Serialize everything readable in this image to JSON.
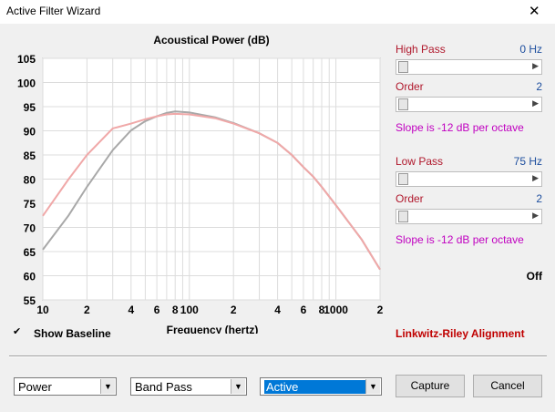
{
  "window": {
    "title": "Active Filter Wizard",
    "close": "✕"
  },
  "chart_data": {
    "type": "line",
    "title": "Acoustical Power (dB)",
    "x_label": "Frequency (hertz)",
    "log_x": true,
    "grid": true,
    "xlim": [
      10,
      2000
    ],
    "ylim": [
      55,
      105
    ],
    "xticks": [
      10,
      {
        "value": 20,
        "label": "2"
      },
      {
        "value": 40,
        "label": "4"
      },
      {
        "value": 60,
        "label": "6"
      },
      {
        "value": 80,
        "label": "8"
      },
      100,
      {
        "value": 200,
        "label": "2"
      },
      {
        "value": 400,
        "label": "4"
      },
      {
        "value": 600,
        "label": "6"
      },
      {
        "value": 800,
        "label": "8"
      },
      1000,
      {
        "value": 2000,
        "label": "2"
      }
    ],
    "xminorticks": [
      30,
      50,
      70,
      90,
      300,
      500,
      700,
      900
    ],
    "yticks": [
      55,
      60,
      65,
      70,
      75,
      80,
      85,
      90,
      95,
      100,
      105
    ],
    "x": [
      10,
      15,
      20,
      30,
      40,
      50,
      60,
      70,
      80,
      100,
      150,
      200,
      300,
      400,
      500,
      600,
      700,
      800,
      1000,
      1500,
      2000
    ],
    "series": [
      {
        "color": "#a8a8a8",
        "values": [
          65.4,
          72.5,
          78.4,
          86,
          90.1,
          92,
          93,
          93.7,
          94,
          93.8,
          92.8,
          91.6,
          89.5,
          87.5,
          85,
          82.5,
          80.5,
          78.4,
          74.6,
          67.5,
          61.3
        ]
      },
      {
        "color": "#f0a8a8",
        "values": [
          72.4,
          80,
          85,
          90.5,
          91.5,
          92.4,
          93,
          93.4,
          93.5,
          93.4,
          92.6,
          91.5,
          89.5,
          87.5,
          85,
          82.5,
          80.5,
          78.4,
          74.6,
          67.5,
          61.3
        ]
      }
    ]
  },
  "controls": {
    "high_pass": {
      "label": "High Pass",
      "value": "0 Hz"
    },
    "high_order": {
      "label": "Order",
      "value": "2"
    },
    "high_slope": "Slope is -12 dB per octave",
    "low_pass": {
      "label": "Low Pass",
      "value": "75 Hz"
    },
    "low_order": {
      "label": "Order",
      "value": "2"
    },
    "low_slope": "Slope is -12 dB per octave",
    "status": "Off",
    "alignment": "Linkwitz-Riley Alignment",
    "show_baseline": "Show Baseline",
    "check": "✔",
    "dropdowns": [
      "Power",
      "Band Pass",
      "Active"
    ],
    "buttons": [
      "Capture",
      "Cancel"
    ]
  }
}
